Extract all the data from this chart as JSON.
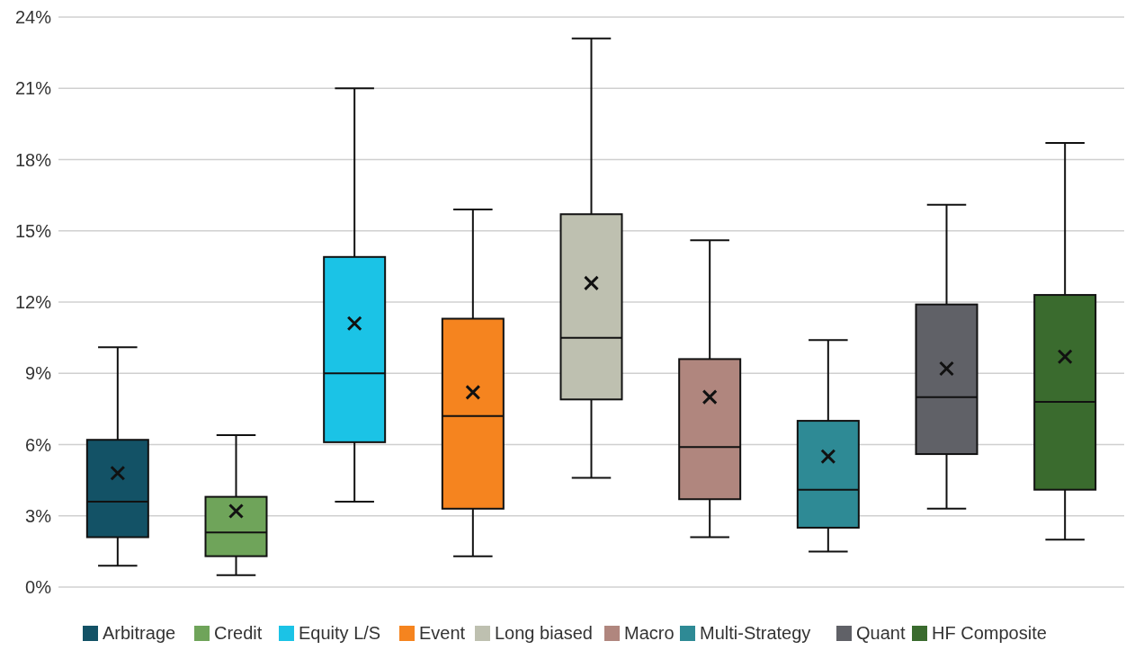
{
  "chart_data": {
    "type": "box",
    "categories": [
      null,
      null,
      null,
      null,
      null,
      null,
      null,
      null,
      null
    ],
    "ylim": [
      0,
      24
    ],
    "yticks": [
      {
        "value": 0,
        "label": "0%"
      },
      {
        "value": 3,
        "label": "3%"
      },
      {
        "value": 6,
        "label": "6%"
      },
      {
        "value": 9,
        "label": "9%"
      },
      {
        "value": 12,
        "label": "12%"
      },
      {
        "value": 15,
        "label": "15%"
      },
      {
        "value": 18,
        "label": "18%"
      },
      {
        "value": 21,
        "label": "21%"
      },
      {
        "value": 24,
        "label": "24%"
      }
    ],
    "grid": "y",
    "legend": "bottom",
    "marker": "cross",
    "series": [
      {
        "name": "Arbitrage",
        "color": "#135266",
        "boxes": [
          {
            "low": 0.9,
            "q1": 2.1,
            "median": 3.6,
            "q3": 6.2,
            "high": 10.1,
            "mean": 4.8
          },
          null,
          null,
          null,
          null,
          null,
          null,
          null,
          null
        ]
      },
      {
        "name": "Credit",
        "color": "#6fa45a",
        "boxes": [
          null,
          {
            "low": 0.5,
            "q1": 1.3,
            "median": 2.3,
            "q3": 3.8,
            "high": 6.4,
            "mean": 3.2
          },
          null,
          null,
          null,
          null,
          null,
          null,
          null
        ]
      },
      {
        "name": "Equity L/S",
        "color": "#1bc3e6",
        "boxes": [
          null,
          null,
          {
            "low": 3.6,
            "q1": 6.1,
            "median": 9.0,
            "q3": 13.9,
            "high": 21.0,
            "mean": 11.1
          },
          null,
          null,
          null,
          null,
          null,
          null
        ]
      },
      {
        "name": "Event",
        "color": "#f5841f",
        "boxes": [
          null,
          null,
          null,
          {
            "low": 1.3,
            "q1": 3.3,
            "median": 7.2,
            "q3": 11.3,
            "high": 15.9,
            "mean": 8.2
          },
          null,
          null,
          null,
          null,
          null
        ]
      },
      {
        "name": "Long biased",
        "color": "#bec0b0",
        "boxes": [
          null,
          null,
          null,
          null,
          {
            "low": 4.6,
            "q1": 7.9,
            "median": 10.5,
            "q3": 15.7,
            "high": 23.1,
            "mean": 12.8
          },
          null,
          null,
          null,
          null
        ]
      },
      {
        "name": "Macro",
        "color": "#b0867e",
        "boxes": [
          null,
          null,
          null,
          null,
          null,
          {
            "low": 2.1,
            "q1": 3.7,
            "median": 5.9,
            "q3": 9.6,
            "high": 14.6,
            "mean": 8.0
          },
          null,
          null,
          null
        ]
      },
      {
        "name": "Multi-Strategy",
        "color": "#2e8a95",
        "boxes": [
          null,
          null,
          null,
          null,
          null,
          null,
          {
            "low": 1.5,
            "q1": 2.5,
            "median": 4.1,
            "q3": 7.0,
            "high": 10.4,
            "mean": 5.5
          },
          null,
          null
        ]
      },
      {
        "name": "Quant",
        "color": "#606167",
        "boxes": [
          null,
          null,
          null,
          null,
          null,
          null,
          null,
          {
            "low": 3.3,
            "q1": 5.6,
            "median": 8.0,
            "q3": 11.9,
            "high": 16.1,
            "mean": 9.2
          },
          null
        ]
      },
      {
        "name": "HF Composite",
        "color": "#3a6b2e",
        "boxes": [
          null,
          null,
          null,
          null,
          null,
          null,
          null,
          null,
          {
            "low": 2.0,
            "q1": 4.1,
            "median": 7.8,
            "q3": 12.3,
            "high": 18.7,
            "mean": 9.7
          }
        ]
      }
    ]
  }
}
